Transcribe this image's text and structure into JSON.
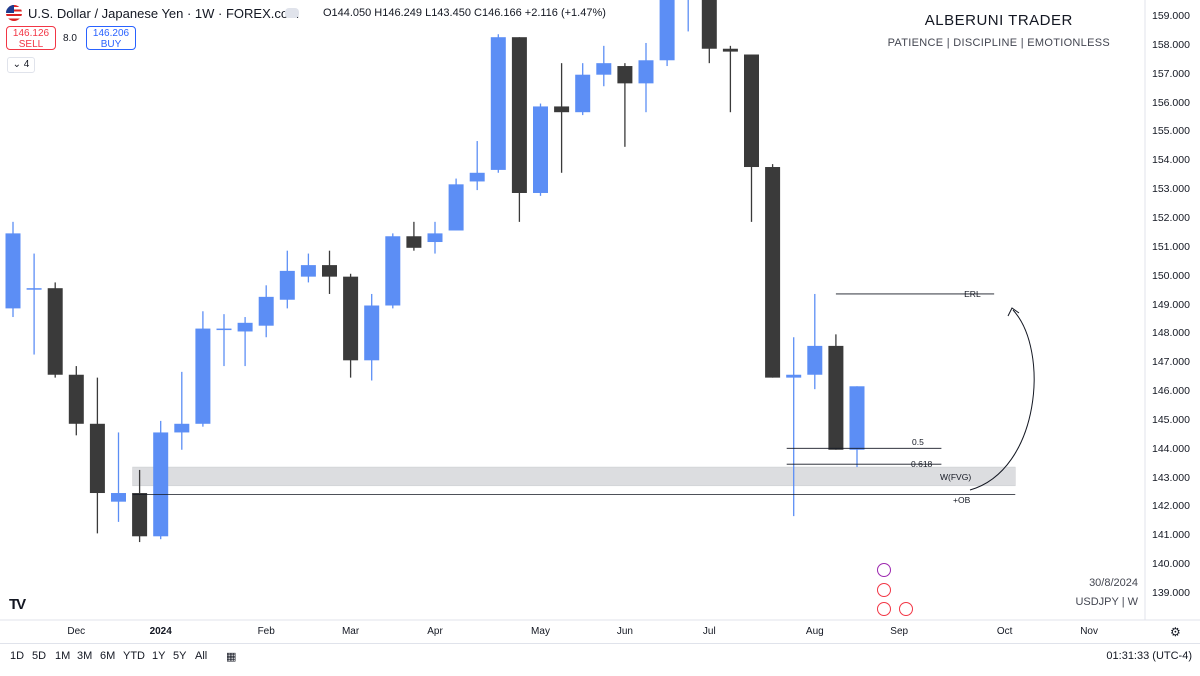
{
  "header": {
    "symbol_title": "U.S. Dollar / Japanese Yen · 1W · FOREX.com",
    "ohlc": "O144.050 H146.249 L143.450 C146.166 +2.116 (+1.47%)",
    "sell_price": "146.126",
    "sell_label": "SELL",
    "spread": "8.0",
    "buy_price": "146.206",
    "buy_label": "BUY",
    "indicator_count": "4"
  },
  "brand": {
    "title": "ALBERUNI TRADER",
    "subtitle": "PATIENCE  |  DISCIPLINE  |  EMOTIONLESS"
  },
  "footer": {
    "date": "30/8/2024",
    "symbol": "USDJPY  |  W",
    "timeframes": [
      "1D",
      "5D",
      "1M",
      "3M",
      "6M",
      "YTD",
      "1Y",
      "5Y",
      "All"
    ],
    "clock": "01:31:33 (UTC-4)"
  },
  "colors": {
    "bull": "#5c8ef5",
    "bear": "#3a3a3a",
    "zone": "#dcdde0"
  },
  "chart_data": {
    "type": "candlestick",
    "y_ticks": [
      "159.000",
      "158.000",
      "157.000",
      "156.000",
      "155.000",
      "154.000",
      "153.000",
      "152.000",
      "151.000",
      "150.000",
      "149.000",
      "148.000",
      "147.000",
      "146.000",
      "145.000",
      "144.000",
      "143.000",
      "142.000",
      "141.000",
      "140.000",
      "139.000"
    ],
    "ylim": [
      138.2,
      159.5
    ],
    "x_labels": [
      {
        "label": "Dec",
        "bold": false,
        "index": 3
      },
      {
        "label": "2024",
        "bold": true,
        "index": 7
      },
      {
        "label": "Feb",
        "bold": false,
        "index": 12
      },
      {
        "label": "Mar",
        "bold": false,
        "index": 16
      },
      {
        "label": "Apr",
        "bold": false,
        "index": 20
      },
      {
        "label": "May",
        "bold": false,
        "index": 25
      },
      {
        "label": "Jun",
        "bold": false,
        "index": 29
      },
      {
        "label": "Jul",
        "bold": false,
        "index": 33
      },
      {
        "label": "Aug",
        "bold": false,
        "index": 38
      },
      {
        "label": "Sep",
        "bold": false,
        "index": 42
      },
      {
        "label": "Oct",
        "bold": false,
        "index": 47
      },
      {
        "label": "Nov",
        "bold": false,
        "index": 51
      }
    ],
    "candles": [
      {
        "o": 148.9,
        "h": 151.9,
        "l": 148.6,
        "c": 151.5
      },
      {
        "o": 149.6,
        "h": 150.8,
        "l": 147.3,
        "c": 149.6
      },
      {
        "o": 149.6,
        "h": 149.8,
        "l": 146.5,
        "c": 146.6
      },
      {
        "o": 146.6,
        "h": 146.9,
        "l": 144.5,
        "c": 144.9
      },
      {
        "o": 144.9,
        "h": 146.5,
        "l": 141.1,
        "c": 142.5
      },
      {
        "o": 142.2,
        "h": 144.6,
        "l": 141.5,
        "c": 142.5
      },
      {
        "o": 142.5,
        "h": 143.3,
        "l": 140.8,
        "c": 141.0
      },
      {
        "o": 141.0,
        "h": 145.0,
        "l": 140.9,
        "c": 144.6
      },
      {
        "o": 144.6,
        "h": 146.7,
        "l": 144.0,
        "c": 144.9
      },
      {
        "o": 144.9,
        "h": 148.8,
        "l": 144.8,
        "c": 148.2
      },
      {
        "o": 148.2,
        "h": 148.7,
        "l": 146.9,
        "c": 148.2
      },
      {
        "o": 148.1,
        "h": 148.6,
        "l": 146.9,
        "c": 148.4
      },
      {
        "o": 148.3,
        "h": 149.7,
        "l": 147.9,
        "c": 149.3
      },
      {
        "o": 149.2,
        "h": 150.9,
        "l": 148.9,
        "c": 150.2
      },
      {
        "o": 150.0,
        "h": 150.8,
        "l": 149.8,
        "c": 150.4
      },
      {
        "o": 150.4,
        "h": 150.9,
        "l": 149.4,
        "c": 150.0
      },
      {
        "o": 150.0,
        "h": 150.1,
        "l": 146.5,
        "c": 147.1
      },
      {
        "o": 147.1,
        "h": 149.4,
        "l": 146.4,
        "c": 149.0
      },
      {
        "o": 149.0,
        "h": 151.5,
        "l": 148.9,
        "c": 151.4
      },
      {
        "o": 151.4,
        "h": 151.9,
        "l": 150.9,
        "c": 151.0
      },
      {
        "o": 151.2,
        "h": 151.9,
        "l": 150.8,
        "c": 151.5
      },
      {
        "o": 151.6,
        "h": 153.4,
        "l": 151.6,
        "c": 153.2
      },
      {
        "o": 153.3,
        "h": 154.7,
        "l": 153.0,
        "c": 153.6
      },
      {
        "o": 153.7,
        "h": 158.4,
        "l": 153.6,
        "c": 158.3
      },
      {
        "o": 158.3,
        "h": 158.3,
        "l": 151.9,
        "c": 152.9
      },
      {
        "o": 152.9,
        "h": 156.0,
        "l": 152.8,
        "c": 155.9
      },
      {
        "o": 155.9,
        "h": 157.4,
        "l": 153.6,
        "c": 155.7
      },
      {
        "o": 155.7,
        "h": 157.4,
        "l": 155.6,
        "c": 157.0
      },
      {
        "o": 157.0,
        "h": 158.0,
        "l": 156.6,
        "c": 157.4
      },
      {
        "o": 157.3,
        "h": 157.4,
        "l": 154.5,
        "c": 156.7
      },
      {
        "o": 156.7,
        "h": 158.1,
        "l": 155.7,
        "c": 157.5
      },
      {
        "o": 157.5,
        "h": 160.2,
        "l": 157.3,
        "c": 160.0
      },
      {
        "o": 160.0,
        "h": 161.9,
        "l": 158.5,
        "c": 160.9
      },
      {
        "o": 161.9,
        "h": 161.9,
        "l": 157.4,
        "c": 157.9
      },
      {
        "o": 157.9,
        "h": 158.0,
        "l": 155.7,
        "c": 157.8
      },
      {
        "o": 157.7,
        "h": 157.7,
        "l": 151.9,
        "c": 153.8
      },
      {
        "o": 153.8,
        "h": 153.9,
        "l": 146.5,
        "c": 146.5
      },
      {
        "o": 146.5,
        "h": 147.9,
        "l": 141.7,
        "c": 146.6
      },
      {
        "o": 146.6,
        "h": 149.4,
        "l": 146.1,
        "c": 147.6
      },
      {
        "o": 147.6,
        "h": 148.0,
        "l": 144.0,
        "c": 144.0
      },
      {
        "o": 144.0,
        "h": 146.2,
        "l": 143.4,
        "c": 146.2
      }
    ],
    "annotations": [
      {
        "label": "ERL",
        "price": 149.4,
        "from": 39,
        "to": 46.5
      },
      {
        "label": "0.5",
        "price": 144.05,
        "from": 37,
        "to": 44
      },
      {
        "label": "0.618",
        "price": 143.5,
        "from": 37,
        "to": 44
      },
      {
        "label": "W(FVG)",
        "zone_low": 142.75,
        "zone_high": 143.4,
        "from": 6,
        "to": 47.5
      },
      {
        "label": "+OB",
        "price": 142.45,
        "from": 6,
        "to": 47.5
      }
    ]
  }
}
